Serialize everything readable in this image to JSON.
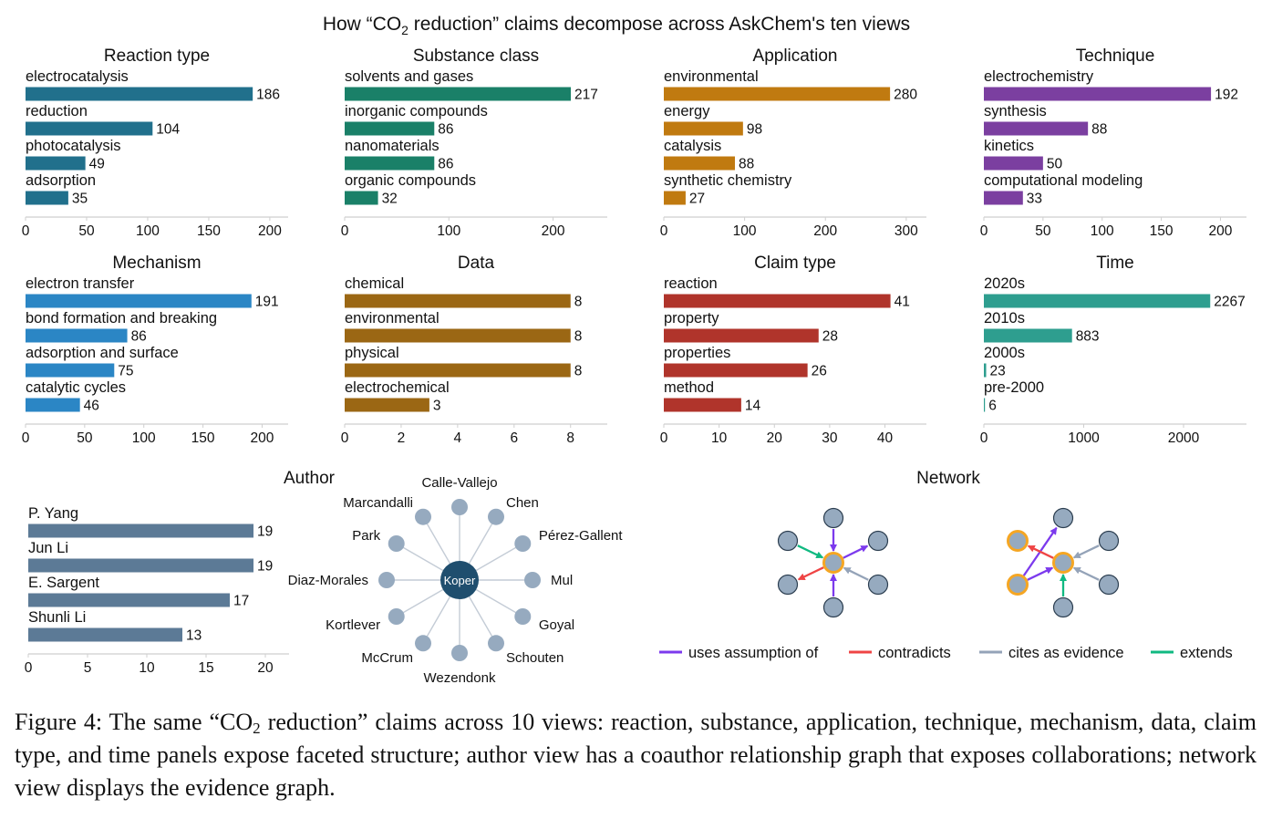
{
  "figure_title": {
    "pre": "How “CO",
    "sub": "2",
    "post": " reduction” claims decompose across AskChem's ten views"
  },
  "caption": {
    "label": "Figure 4:",
    "pre": " The same “CO",
    "sub": "2",
    "post": " reduction” claims across 10 views: reaction, substance, application, technique, mechanism, data, claim type, and time panels expose faceted structure; author view has a coauthor relationship graph that exposes collaborations; network view displays the evidence graph."
  },
  "chart_data": [
    {
      "type": "bar",
      "orientation": "horizontal",
      "title": "Reaction type",
      "color": "#21708c",
      "categories": [
        "electrocatalysis",
        "reduction",
        "photocatalysis",
        "adsorption"
      ],
      "values": [
        186,
        104,
        49,
        35
      ],
      "xlim": [
        0,
        215
      ],
      "xticks": [
        0,
        50,
        100,
        150,
        200
      ]
    },
    {
      "type": "bar",
      "orientation": "horizontal",
      "title": "Substance class",
      "color": "#1a8068",
      "categories": [
        "solvents and gases",
        "inorganic compounds",
        "nanomaterials",
        "organic compounds"
      ],
      "values": [
        217,
        86,
        86,
        32
      ],
      "xlim": [
        0,
        252
      ],
      "xticks": [
        0,
        100,
        200
      ]
    },
    {
      "type": "bar",
      "orientation": "horizontal",
      "title": "Application",
      "color": "#c07a10",
      "categories": [
        "environmental",
        "energy",
        "catalysis",
        "synthetic chemistry"
      ],
      "values": [
        280,
        98,
        88,
        27
      ],
      "xlim": [
        0,
        325
      ],
      "xticks": [
        0,
        100,
        200,
        300
      ]
    },
    {
      "type": "bar",
      "orientation": "horizontal",
      "title": "Technique",
      "color": "#7b3fa0",
      "categories": [
        "electrochemistry",
        "synthesis",
        "kinetics",
        "computational modeling"
      ],
      "values": [
        192,
        88,
        50,
        33
      ],
      "xlim": [
        0,
        222
      ],
      "xticks": [
        0,
        50,
        100,
        150,
        200
      ]
    },
    {
      "type": "bar",
      "orientation": "horizontal",
      "title": "Mechanism",
      "color": "#2b86c5",
      "categories": [
        "electron transfer",
        "bond formation and breaking",
        "adsorption and surface",
        "catalytic cycles"
      ],
      "values": [
        191,
        86,
        75,
        46
      ],
      "xlim": [
        0,
        222
      ],
      "xticks": [
        0,
        50,
        100,
        150,
        200
      ]
    },
    {
      "type": "bar",
      "orientation": "horizontal",
      "title": "Data",
      "color": "#9b6714",
      "categories": [
        "chemical",
        "environmental",
        "physical",
        "electrochemical"
      ],
      "values": [
        8,
        8,
        8,
        3
      ],
      "xlim": [
        0,
        9.3
      ],
      "xticks": [
        0,
        2,
        4,
        6,
        8
      ]
    },
    {
      "type": "bar",
      "orientation": "horizontal",
      "title": "Claim type",
      "color": "#b0342b",
      "categories": [
        "reaction",
        "property",
        "properties",
        "method"
      ],
      "values": [
        41,
        28,
        26,
        14
      ],
      "xlim": [
        0,
        47.5
      ],
      "xticks": [
        0,
        10,
        20,
        30,
        40
      ]
    },
    {
      "type": "bar",
      "orientation": "horizontal",
      "title": "Time",
      "color": "#2e9e8f",
      "categories": [
        "2020s",
        "2010s",
        "2000s",
        "pre-2000"
      ],
      "values": [
        2267,
        883,
        23,
        6
      ],
      "xlim": [
        0,
        2630
      ],
      "xticks": [
        0,
        1000,
        2000
      ]
    },
    {
      "type": "bar",
      "orientation": "horizontal",
      "title": "Author",
      "color": "#5c7a96",
      "categories": [
        "P. Yang",
        "Jun Li",
        "E. Sargent",
        "Shunli Li"
      ],
      "values": [
        19,
        19,
        17,
        13
      ],
      "xlim": [
        0,
        22
      ],
      "xticks": [
        0,
        5,
        10,
        15,
        20
      ]
    }
  ],
  "coauthor_graph": {
    "hub": "Koper",
    "nodes": [
      "Calle-Vallejo",
      "Chen",
      "Pérez-Gallent",
      "Mul",
      "Goyal",
      "Schouten",
      "Wezendonk",
      "McCrum",
      "Kortlever",
      "Diaz-Morales",
      "Park",
      "Marcandalli"
    ]
  },
  "network": {
    "title": "Network",
    "legend": [
      {
        "label": "uses assumption of",
        "color": "#7c3aed"
      },
      {
        "label": "contradicts",
        "color": "#ef4444"
      },
      {
        "label": "cites as evidence",
        "color": "#94a3b8"
      },
      {
        "label": "extends",
        "color": "#10b981"
      }
    ]
  }
}
